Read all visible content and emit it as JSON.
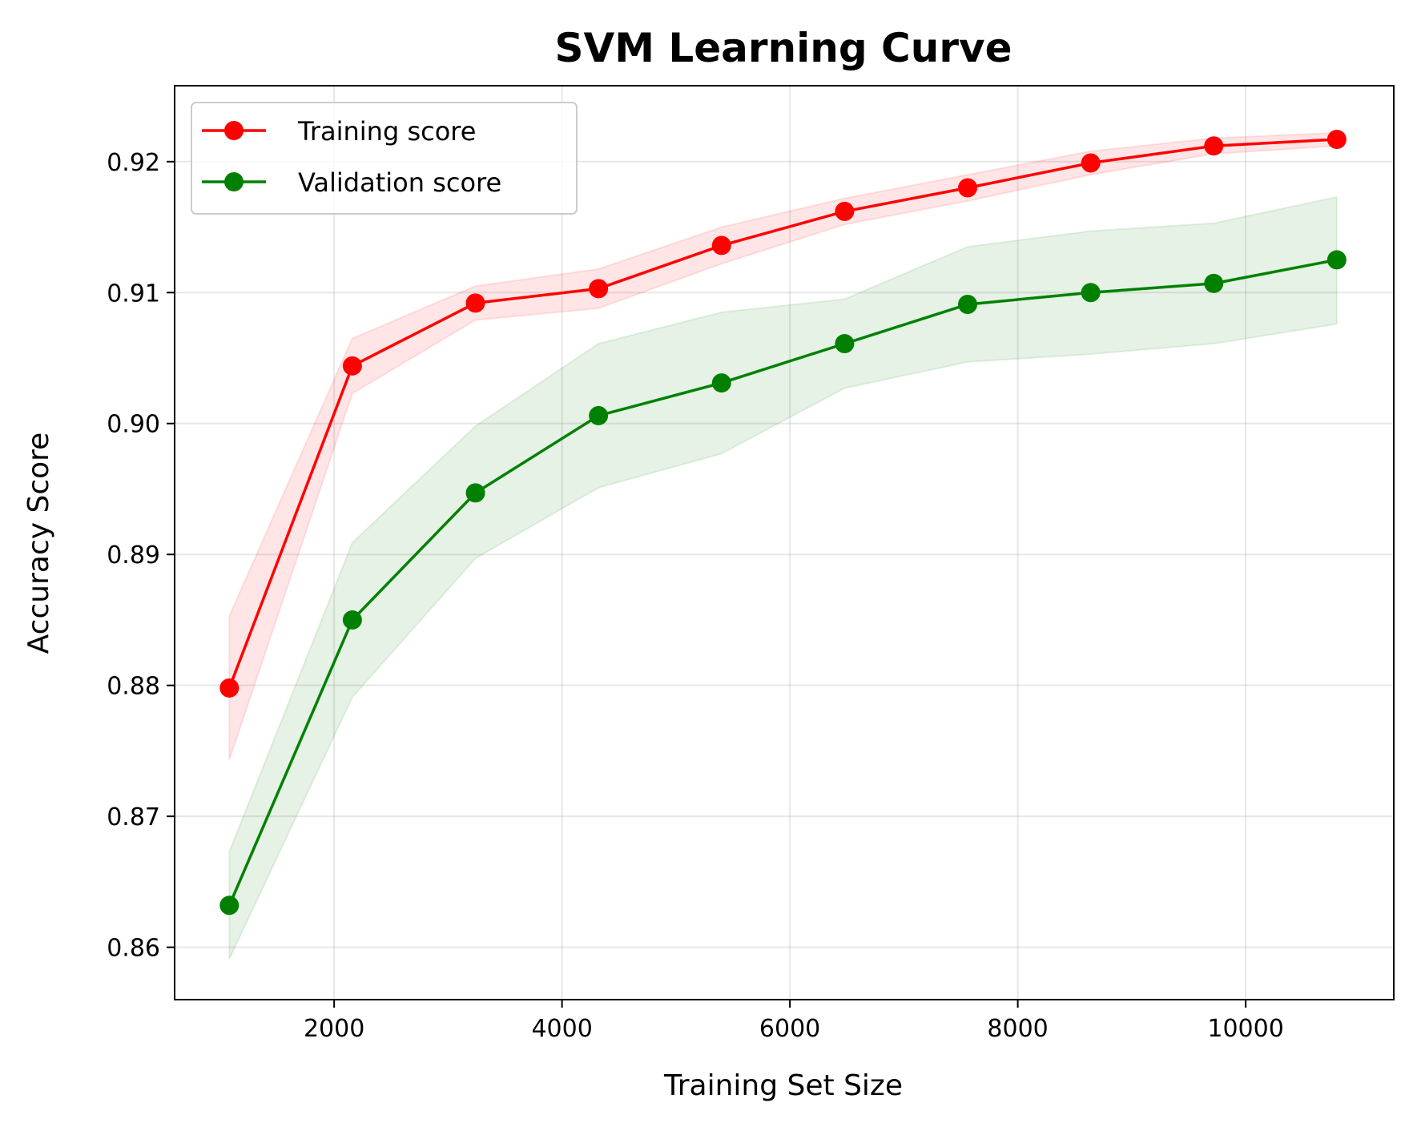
{
  "chart_data": {
    "type": "line",
    "title": "SVM Learning Curve",
    "xlabel": "Training Set Size",
    "ylabel": "Accuracy Score",
    "xlim": [
      600,
      11300
    ],
    "ylim": [
      0.856,
      0.9258
    ],
    "xticks": [
      2000,
      4000,
      6000,
      8000,
      10000
    ],
    "xtick_labels": [
      "2000",
      "4000",
      "6000",
      "8000",
      "10000"
    ],
    "yticks": [
      0.86,
      0.87,
      0.88,
      0.89,
      0.9,
      0.91,
      0.92
    ],
    "ytick_labels": [
      "0.86",
      "0.87",
      "0.88",
      "0.89",
      "0.90",
      "0.91",
      "0.92"
    ],
    "grid": true,
    "legend_position": "upper-left",
    "x": [
      1080,
      2160,
      3240,
      4320,
      5400,
      6480,
      7560,
      8640,
      9720,
      10800
    ],
    "series": [
      {
        "name": "Training score",
        "color": "#ff0000",
        "band_color": "#ff0000",
        "values": [
          0.8798,
          0.9044,
          0.9092,
          0.9103,
          0.9136,
          0.9162,
          0.918,
          0.9199,
          0.9212,
          0.9217
        ],
        "lower": [
          0.8743,
          0.9023,
          0.9079,
          0.9088,
          0.9122,
          0.9152,
          0.917,
          0.919,
          0.9206,
          0.9212
        ],
        "upper": [
          0.8853,
          0.9065,
          0.9105,
          0.9118,
          0.915,
          0.9172,
          0.919,
          0.9208,
          0.9218,
          0.9222
        ]
      },
      {
        "name": "Validation score",
        "color": "#008000",
        "band_color": "#008000",
        "values": [
          0.8632,
          0.885,
          0.8947,
          0.9006,
          0.9031,
          0.9061,
          0.9091,
          0.91,
          0.9107,
          0.9125
        ],
        "lower": [
          0.8591,
          0.8791,
          0.8897,
          0.8951,
          0.8977,
          0.9027,
          0.9047,
          0.9053,
          0.9061,
          0.9076
        ],
        "upper": [
          0.8673,
          0.8909,
          0.8998,
          0.9061,
          0.9085,
          0.9095,
          0.9135,
          0.9147,
          0.9153,
          0.9173
        ]
      }
    ]
  }
}
